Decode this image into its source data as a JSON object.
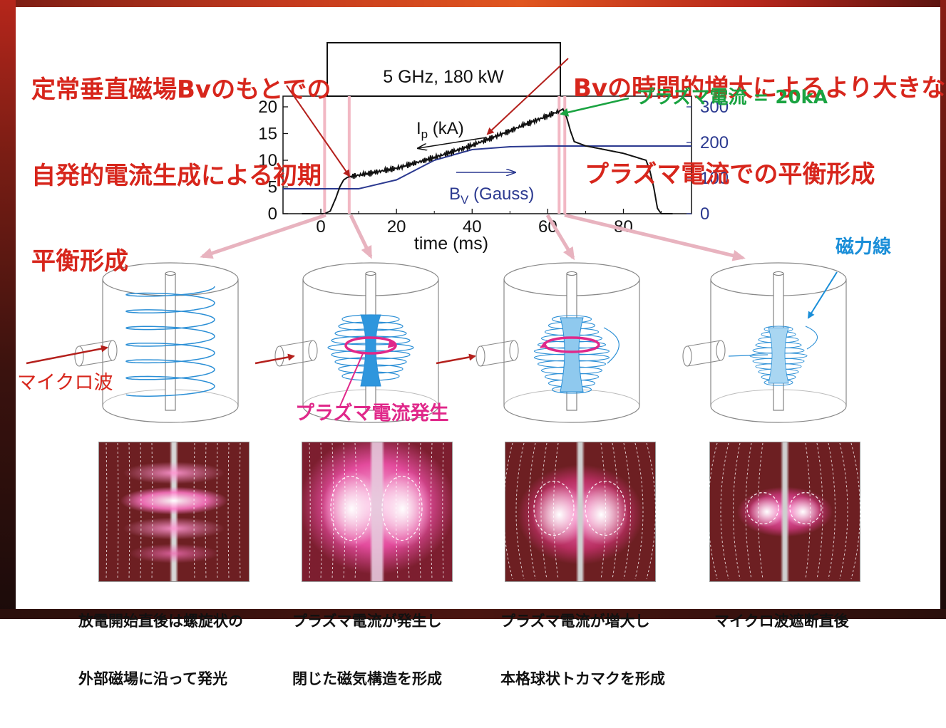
{
  "headings": {
    "left": [
      "定常垂直磁場Bvのもとでの",
      "自発的電流生成による初期",
      "平衡形成"
    ],
    "right": [
      "Bvの時間的増大によるより大きな",
      "プラズマ電流での平衡形成"
    ]
  },
  "plot": {
    "rf_box_label": "5 GHz, 180 kW",
    "xlabel": "time (ms)",
    "x_ticks": [
      "0",
      "20",
      "40",
      "60",
      "80"
    ],
    "y_left_ticks": [
      "0",
      "5",
      "10",
      "15",
      "20"
    ],
    "y_right_ticks": [
      "0",
      "100",
      "200",
      "300"
    ],
    "ip_label": "Ip (kA)",
    "bv_label": "BV (Gauss)",
    "current_annotation": "プラズマ電流 = 20kA"
  },
  "chart_data": {
    "type": "line",
    "xlabel": "time (ms)",
    "xlim": [
      -10,
      98
    ],
    "ylim_left": [
      0,
      22
    ],
    "ylim_right": [
      0,
      330
    ],
    "series": [
      {
        "name": "Ip (kA)",
        "axis": "left",
        "color": "#111111",
        "x": [
          -5,
          1,
          2.5,
          4,
          5,
          6,
          7,
          8,
          10,
          20,
          30,
          40,
          50,
          55,
          60,
          63,
          64,
          65,
          66,
          67,
          70,
          80,
          86,
          87,
          88,
          89,
          90,
          93
        ],
        "y": [
          0,
          0,
          0.5,
          3,
          5,
          6.3,
          6.8,
          7,
          7.2,
          8.5,
          10.5,
          12.8,
          15.5,
          17,
          18.3,
          19.2,
          19.6,
          18,
          15.5,
          13.5,
          12.7,
          11.3,
          10,
          8,
          5,
          1,
          0,
          0
        ]
      },
      {
        "name": "BV (Gauss)",
        "axis": "right",
        "color": "#2b3990",
        "x": [
          -10,
          10,
          20,
          30,
          40,
          50,
          60,
          70,
          80,
          98
        ],
        "y": [
          70,
          70,
          95,
          150,
          180,
          188,
          190,
          190,
          190,
          190
        ]
      }
    ],
    "markers_ms": [
      1,
      7.5,
      63,
      64.5
    ]
  },
  "labels": {
    "microwave": "マイクロ波",
    "plasma_current_generation": "プラズマ電流発生",
    "field_lines": "磁力線"
  },
  "captions": [
    [
      "放電開始直後は螺旋状の",
      "外部磁場に沿って発光"
    ],
    [
      "プラズマ電流が発生し",
      "閉じた磁気構造を形成"
    ],
    [
      "プラズマ電流が増大し",
      "本格球状トカマクを形成"
    ],
    [
      "マイクロ波遮断直後",
      ""
    ]
  ],
  "colors": {
    "heading_red": "#d7261c",
    "green": "#1aa341",
    "field_blue": "#1a8ed8",
    "magenta": "#e0288a",
    "bv_blue": "#2b3990",
    "pink_arrow": "#e8b3bf"
  }
}
